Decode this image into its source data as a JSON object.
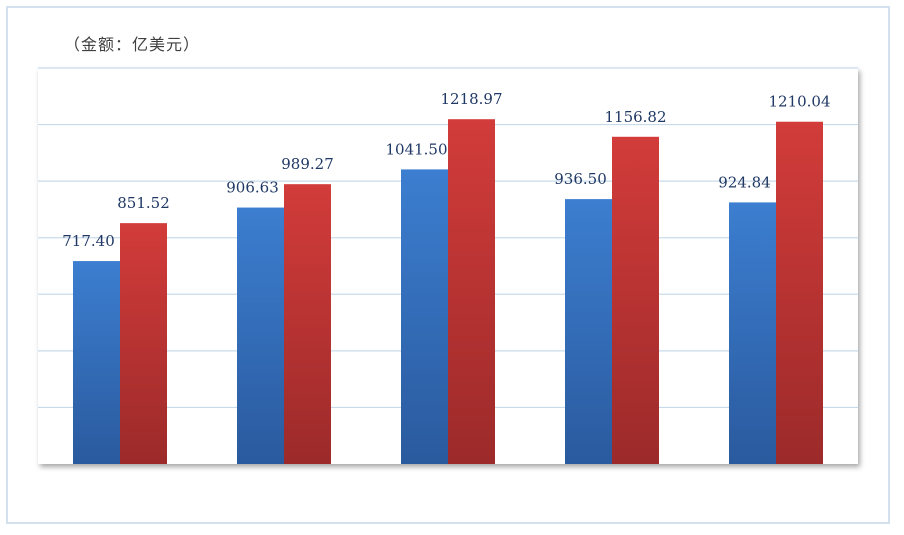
{
  "unit_label": "（金额：亿美元）",
  "chart_data": {
    "type": "bar",
    "title": "",
    "xlabel": "",
    "ylabel": "",
    "categories": [
      "",
      "",
      "",
      "",
      ""
    ],
    "ylim": [
      0,
      1400
    ],
    "grid": true,
    "series": [
      {
        "values": [
          717.4,
          906.63,
          1041.5,
          936.5,
          924.84
        ],
        "labels": [
          "717.40",
          "906.63",
          "1041.50",
          "936.50",
          "924.84"
        ],
        "color": "#3a78c8"
      },
      {
        "values": [
          851.52,
          989.27,
          1218.97,
          1156.82,
          1210.04
        ],
        "labels": [
          "851.52",
          "989.27",
          "1218.97",
          "1156.82",
          "1210.04"
        ],
        "color": "#c9393a"
      }
    ]
  }
}
